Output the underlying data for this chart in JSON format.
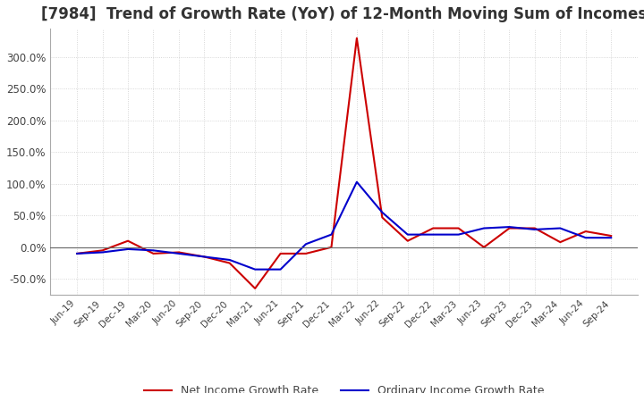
{
  "title": "[7984]  Trend of Growth Rate (YoY) of 12-Month Moving Sum of Incomes",
  "title_fontsize": 12,
  "ylim": [
    -75,
    345
  ],
  "yticks": [
    -50,
    0,
    50,
    100,
    150,
    200,
    250,
    300
  ],
  "ytick_labels": [
    "-50.0%",
    "0.0%",
    "50.0%",
    "100.0%",
    "150.0%",
    "200.0%",
    "250.0%",
    "300.0%"
  ],
  "background_color": "#ffffff",
  "plot_background": "#ffffff",
  "grid_color": "#cccccc",
  "ordinary_color": "#0000cc",
  "net_color": "#cc0000",
  "legend_labels": [
    "Ordinary Income Growth Rate",
    "Net Income Growth Rate"
  ],
  "x_labels": [
    "Jun-19",
    "Sep-19",
    "Dec-19",
    "Mar-20",
    "Jun-20",
    "Sep-20",
    "Dec-20",
    "Mar-21",
    "Jun-21",
    "Sep-21",
    "Dec-21",
    "Mar-22",
    "Jun-22",
    "Sep-22",
    "Dec-22",
    "Mar-23",
    "Jun-23",
    "Sep-23",
    "Dec-23",
    "Mar-24",
    "Jun-24",
    "Sep-24"
  ],
  "ordinary_income_growth": [
    -10,
    -8,
    -3,
    -5,
    -10,
    -15,
    -20,
    -35,
    -35,
    5,
    20,
    103,
    55,
    20,
    20,
    20,
    30,
    32,
    28,
    30,
    15,
    15
  ],
  "net_income_growth": [
    -10,
    -5,
    10,
    -10,
    -8,
    -15,
    -25,
    -65,
    -10,
    -10,
    0,
    330,
    47,
    10,
    30,
    30,
    0,
    30,
    30,
    8,
    25,
    18
  ]
}
